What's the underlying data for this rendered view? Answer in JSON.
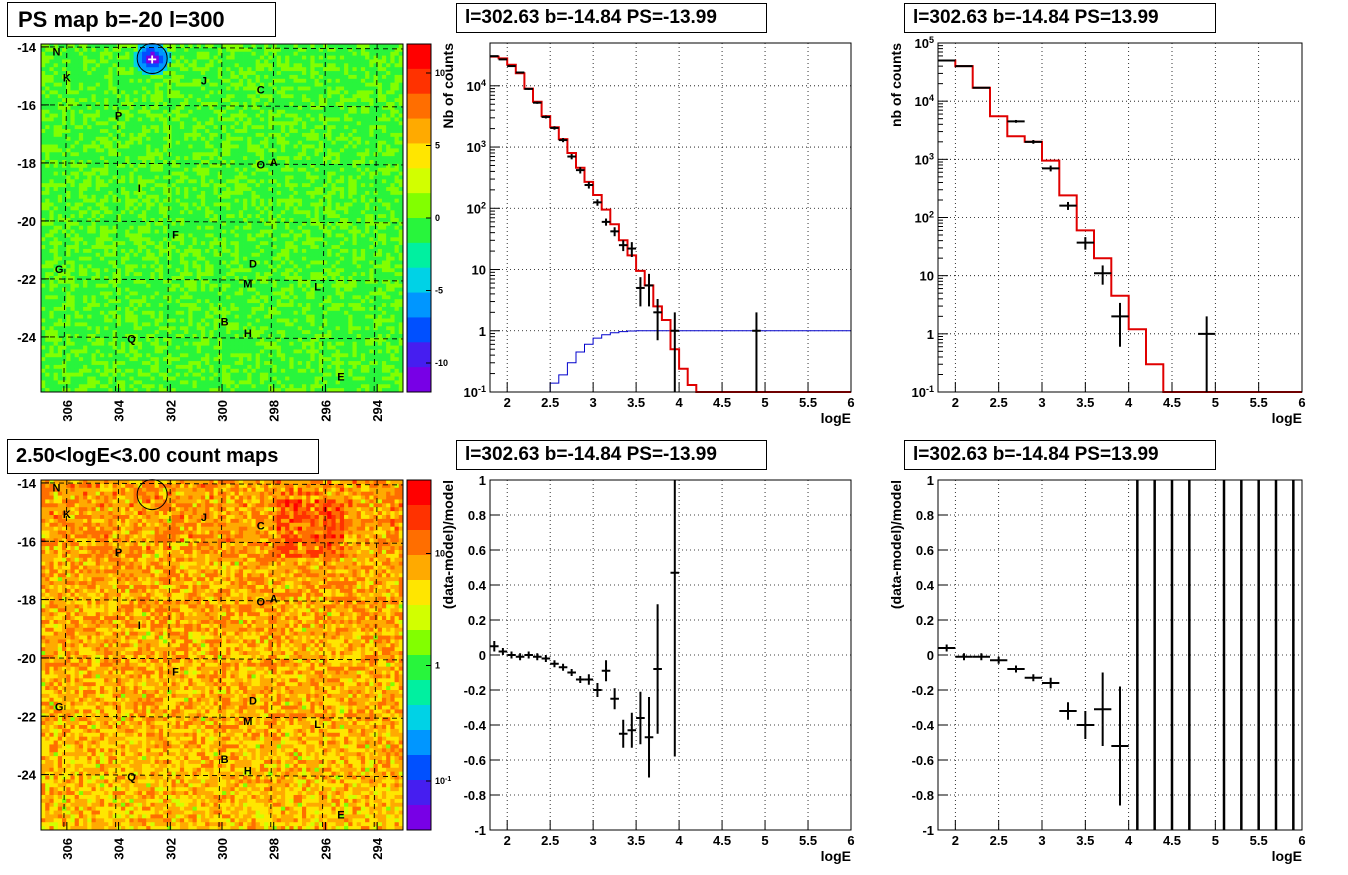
{
  "chart_data": [
    {
      "id": "ps_map",
      "type": "heatmap",
      "title": "PS map b=-20 l=300",
      "xlim": [
        307,
        293
      ],
      "ylim": [
        -25.9,
        -13.9
      ],
      "x_ticks": [
        306,
        304,
        302,
        300,
        298,
        296,
        294
      ],
      "y_ticks": [
        -14,
        -16,
        -18,
        -20,
        -22,
        -24
      ],
      "colorbar_ticks": [
        10,
        5,
        0,
        -5,
        -10
      ],
      "colorbar_range": [
        -12,
        12
      ],
      "background_level": -1,
      "hot_spot": {
        "l": 302.7,
        "b": -14.4,
        "label": "+"
      },
      "labels": [
        {
          "text": "N",
          "l": 306.4,
          "b": -14.3
        },
        {
          "text": "K",
          "l": 306.0,
          "b": -15.2
        },
        {
          "text": "J",
          "l": 300.7,
          "b": -15.3
        },
        {
          "text": "C",
          "l": 298.5,
          "b": -15.6
        },
        {
          "text": "P",
          "l": 304.0,
          "b": -16.5
        },
        {
          "text": "O",
          "l": 298.5,
          "b": -18.2
        },
        {
          "text": "A",
          "l": 298.0,
          "b": -18.1
        },
        {
          "text": "I",
          "l": 303.2,
          "b": -19.0
        },
        {
          "text": "F",
          "l": 301.8,
          "b": -20.6
        },
        {
          "text": "D",
          "l": 298.8,
          "b": -21.6
        },
        {
          "text": "G",
          "l": 306.3,
          "b": -21.8
        },
        {
          "text": "M",
          "l": 299.0,
          "b": -22.3
        },
        {
          "text": "L",
          "l": 296.3,
          "b": -22.4
        },
        {
          "text": "B",
          "l": 299.9,
          "b": -23.6
        },
        {
          "text": "H",
          "l": 299.0,
          "b": -24.0
        },
        {
          "text": "Q",
          "l": 303.5,
          "b": -24.2
        },
        {
          "text": "E",
          "l": 295.4,
          "b": -25.5
        }
      ]
    },
    {
      "id": "count_map",
      "type": "heatmap",
      "title": "2.50<logE<3.00 count maps",
      "xlim": [
        307,
        293
      ],
      "ylim": [
        -25.9,
        -13.9
      ],
      "x_ticks": [
        306,
        304,
        302,
        300,
        298,
        296,
        294
      ],
      "y_ticks": [
        -14,
        -16,
        -18,
        -20,
        -22,
        -24
      ],
      "colorbar_ticks": [
        "10",
        "1",
        "10^-1"
      ],
      "source_circle": {
        "l": 302.7,
        "b": -14.4
      },
      "labels": [
        {
          "text": "N",
          "l": 306.4,
          "b": -14.3
        },
        {
          "text": "K",
          "l": 306.0,
          "b": -15.2
        },
        {
          "text": "J",
          "l": 300.7,
          "b": -15.3
        },
        {
          "text": "C",
          "l": 298.5,
          "b": -15.6
        },
        {
          "text": "P",
          "l": 304.0,
          "b": -16.5
        },
        {
          "text": "O",
          "l": 298.5,
          "b": -18.2
        },
        {
          "text": "A",
          "l": 298.0,
          "b": -18.1
        },
        {
          "text": "I",
          "l": 303.2,
          "b": -19.0
        },
        {
          "text": "F",
          "l": 301.8,
          "b": -20.6
        },
        {
          "text": "D",
          "l": 298.8,
          "b": -21.6
        },
        {
          "text": "G",
          "l": 306.3,
          "b": -21.8
        },
        {
          "text": "M",
          "l": 299.0,
          "b": -22.3
        },
        {
          "text": "L",
          "l": 296.3,
          "b": -22.4
        },
        {
          "text": "B",
          "l": 299.9,
          "b": -23.6
        },
        {
          "text": "H",
          "l": 299.0,
          "b": -24.0
        },
        {
          "text": "Q",
          "l": 303.5,
          "b": -24.2
        },
        {
          "text": "E",
          "l": 295.4,
          "b": -25.5
        }
      ]
    },
    {
      "id": "spec_neg",
      "type": "line",
      "title": "l=302.63 b=-14.84 PS=-13.99",
      "xlabel": "logE",
      "ylabel": "Nb of counts",
      "log_y": true,
      "xlim": [
        1.8,
        6.0
      ],
      "ylim": [
        0.1,
        50000
      ],
      "x_ticks": [
        2,
        2.5,
        3,
        3.5,
        4,
        4.5,
        5,
        5.5,
        6
      ],
      "y_ticks": [
        {
          "v": 0.1,
          "t": "10^-1"
        },
        {
          "v": 1,
          "t": "1"
        },
        {
          "v": 10,
          "t": "10"
        },
        {
          "v": 100,
          "t": "10^2"
        },
        {
          "v": 1000,
          "t": "10^3"
        },
        {
          "v": 10000,
          "t": "10^4"
        }
      ],
      "model": {
        "edges": [
          1.8,
          1.9,
          2.0,
          2.1,
          2.2,
          2.3,
          2.4,
          2.5,
          2.6,
          2.7,
          2.8,
          2.9,
          3.0,
          3.1,
          3.2,
          3.3,
          3.4,
          3.5,
          3.6,
          3.7,
          3.8,
          3.9,
          4.0,
          4.1,
          4.2,
          4.3,
          4.4,
          4.5,
          4.6,
          4.7,
          4.8,
          4.9,
          5.0,
          5.1,
          5.2,
          5.3,
          5.4,
          5.5,
          5.6,
          5.7,
          5.8,
          5.9,
          6.0
        ],
        "values": [
          30000,
          28000,
          22000,
          16000,
          9000,
          5500,
          3200,
          2100,
          1350,
          800,
          460,
          270,
          165,
          95,
          55,
          30,
          17,
          9.5,
          5.5,
          2.5,
          1.5,
          0.5,
          0.24,
          0.13,
          0.1,
          0.1,
          0.1,
          0.1,
          0.1,
          0.1,
          0.1,
          0.1,
          0.1,
          0.1,
          0.1,
          0.1,
          0.1,
          0.1,
          0.1,
          0.1,
          0.1,
          0.1
        ]
      },
      "ps_model": {
        "edges": [
          2.4,
          2.5,
          2.6,
          2.7,
          2.8,
          2.9,
          3.0,
          3.1,
          3.2,
          3.3,
          3.4,
          3.5,
          3.6,
          3.7,
          3.8,
          3.9,
          4.0,
          4.1,
          4.2,
          6.0
        ],
        "values": [
          0.1,
          0.14,
          0.19,
          0.3,
          0.45,
          0.6,
          0.76,
          0.86,
          0.93,
          0.97,
          0.99,
          1.0,
          1.0,
          1.0,
          1.0,
          1.0,
          1.0,
          1.0,
          1.0
        ]
      },
      "data": [
        {
          "x": 1.85,
          "y": 30500,
          "ey": 600
        },
        {
          "x": 1.95,
          "y": 27000,
          "ey": 500
        },
        {
          "x": 2.05,
          "y": 21000,
          "ey": 450
        },
        {
          "x": 2.15,
          "y": 16500,
          "ey": 400
        },
        {
          "x": 2.25,
          "y": 8900,
          "ey": 300
        },
        {
          "x": 2.35,
          "y": 5300,
          "ey": 220
        },
        {
          "x": 2.45,
          "y": 3100,
          "ey": 170
        },
        {
          "x": 2.55,
          "y": 2050,
          "ey": 130
        },
        {
          "x": 2.65,
          "y": 1300,
          "ey": 100
        },
        {
          "x": 2.75,
          "y": 700,
          "ey": 70
        },
        {
          "x": 2.85,
          "y": 420,
          "ey": 50
        },
        {
          "x": 2.95,
          "y": 240,
          "ey": 30
        },
        {
          "x": 3.05,
          "y": 125,
          "ey": 15
        },
        {
          "x": 3.15,
          "y": 60,
          "ey": 8
        },
        {
          "x": 3.25,
          "y": 42,
          "ey": 7
        },
        {
          "x": 3.35,
          "y": 25,
          "ey": 5
        },
        {
          "x": 3.45,
          "y": 22,
          "ey": 6
        },
        {
          "x": 3.55,
          "y": 5,
          "ey": 2.5
        },
        {
          "x": 3.65,
          "y": 5.5,
          "ey": 3
        },
        {
          "x": 3.75,
          "y": 2,
          "ey": 1.3
        },
        {
          "x": 3.95,
          "y": 1,
          "ey": 1
        },
        {
          "x": 4.9,
          "y": 1,
          "ey": 1
        }
      ]
    },
    {
      "id": "spec_pos",
      "type": "line",
      "title": "l=302.63 b=-14.84 PS=13.99",
      "xlabel": "logE",
      "ylabel": "nb of counts",
      "log_y": true,
      "xlim": [
        1.8,
        6.0
      ],
      "ylim": [
        0.1,
        100000
      ],
      "x_ticks": [
        2,
        2.5,
        3,
        3.5,
        4,
        4.5,
        5,
        5.5,
        6
      ],
      "y_ticks": [
        {
          "v": 0.1,
          "t": "10^-1"
        },
        {
          "v": 1,
          "t": "1"
        },
        {
          "v": 10,
          "t": "10"
        },
        {
          "v": 100,
          "t": "10^2"
        },
        {
          "v": 1000,
          "t": "10^3"
        },
        {
          "v": 10000,
          "t": "10^4"
        },
        {
          "v": 100000,
          "t": "10^5"
        }
      ],
      "model": {
        "edges": [
          1.8,
          2.0,
          2.2,
          2.4,
          2.6,
          2.8,
          3.0,
          3.2,
          3.4,
          3.6,
          3.8,
          4.0,
          4.2,
          4.4,
          4.6,
          4.8,
          5.0,
          5.2,
          5.4,
          5.6,
          5.8,
          6.0
        ],
        "values": [
          50000,
          40000,
          17000,
          5500,
          2500,
          2000,
          950,
          240,
          60,
          20,
          4.5,
          1.2,
          0.3,
          0.1,
          0.1,
          0.1,
          0.1,
          0.1,
          0.1,
          0.1,
          0.1
        ]
      },
      "data": [
        {
          "x": 1.9,
          "y": 50000,
          "ey": 800
        },
        {
          "x": 2.1,
          "y": 40000,
          "ey": 700
        },
        {
          "x": 2.3,
          "y": 17000,
          "ey": 450
        },
        {
          "x": 2.7,
          "y": 4500,
          "ey": 250
        },
        {
          "x": 2.9,
          "y": 2000,
          "ey": 150
        },
        {
          "x": 3.1,
          "y": 700,
          "ey": 80
        },
        {
          "x": 3.3,
          "y": 160,
          "ey": 25
        },
        {
          "x": 3.5,
          "y": 37,
          "ey": 9
        },
        {
          "x": 3.7,
          "y": 11,
          "ey": 4
        },
        {
          "x": 3.9,
          "y": 2,
          "ey": 1.4
        },
        {
          "x": 4.9,
          "y": 1,
          "ey": 1
        }
      ]
    },
    {
      "id": "resid_neg",
      "type": "scatter",
      "title": "l=302.63 b=-14.84 PS=-13.99",
      "xlabel": "logE",
      "ylabel": "(data-model)/model",
      "xlim": [
        1.8,
        6.0
      ],
      "ylim": [
        -1,
        1
      ],
      "x_ticks": [
        2,
        2.5,
        3,
        3.5,
        4,
        4.5,
        5,
        5.5,
        6
      ],
      "y_ticks": [
        -1,
        -0.8,
        -0.6,
        -0.4,
        -0.2,
        0,
        0.2,
        0.4,
        0.6,
        0.8,
        1
      ],
      "data": [
        {
          "x": 1.85,
          "y": 0.05,
          "ey": 0.03
        },
        {
          "x": 1.95,
          "y": 0.02,
          "ey": 0.02
        },
        {
          "x": 2.05,
          "y": 0.0,
          "ey": 0.02
        },
        {
          "x": 2.15,
          "y": -0.01,
          "ey": 0.02
        },
        {
          "x": 2.25,
          "y": 0.0,
          "ey": 0.02
        },
        {
          "x": 2.35,
          "y": -0.01,
          "ey": 0.02
        },
        {
          "x": 2.45,
          "y": -0.02,
          "ey": 0.02
        },
        {
          "x": 2.55,
          "y": -0.05,
          "ey": 0.02
        },
        {
          "x": 2.65,
          "y": -0.07,
          "ey": 0.02
        },
        {
          "x": 2.75,
          "y": -0.1,
          "ey": 0.02
        },
        {
          "x": 2.85,
          "y": -0.14,
          "ey": 0.02
        },
        {
          "x": 2.95,
          "y": -0.14,
          "ey": 0.03
        },
        {
          "x": 3.05,
          "y": -0.2,
          "ey": 0.04
        },
        {
          "x": 3.15,
          "y": -0.09,
          "ey": 0.06
        },
        {
          "x": 3.25,
          "y": -0.25,
          "ey": 0.06
        },
        {
          "x": 3.35,
          "y": -0.45,
          "ey": 0.08
        },
        {
          "x": 3.45,
          "y": -0.43,
          "ey": 0.1
        },
        {
          "x": 3.55,
          "y": -0.36,
          "ey": 0.15
        },
        {
          "x": 3.65,
          "y": -0.47,
          "ey": 0.23
        },
        {
          "x": 3.75,
          "y": -0.08,
          "ey": 0.37
        },
        {
          "x": 3.95,
          "y": 0.47,
          "ey": 1.05
        }
      ]
    },
    {
      "id": "resid_pos",
      "type": "scatter",
      "title": "l=302.63 b=-14.84 PS=13.99",
      "xlabel": "logE",
      "ylabel": "(data-model)/model",
      "xlim": [
        1.8,
        6.0
      ],
      "ylim": [
        -1,
        1
      ],
      "x_ticks": [
        2,
        2.5,
        3,
        3.5,
        4,
        4.5,
        5,
        5.5,
        6
      ],
      "y_ticks": [
        -1,
        -0.8,
        -0.6,
        -0.4,
        -0.2,
        0,
        0.2,
        0.4,
        0.6,
        0.8,
        1
      ],
      "data": [
        {
          "x": 1.9,
          "y": 0.04,
          "ey": 0.02
        },
        {
          "x": 2.1,
          "y": -0.01,
          "ey": 0.02
        },
        {
          "x": 2.3,
          "y": -0.01,
          "ey": 0.02
        },
        {
          "x": 2.5,
          "y": -0.03,
          "ey": 0.02
        },
        {
          "x": 2.7,
          "y": -0.08,
          "ey": 0.02
        },
        {
          "x": 2.9,
          "y": -0.13,
          "ey": 0.02
        },
        {
          "x": 3.1,
          "y": -0.16,
          "ey": 0.03
        },
        {
          "x": 3.3,
          "y": -0.32,
          "ey": 0.05
        },
        {
          "x": 3.5,
          "y": -0.4,
          "ey": 0.08
        },
        {
          "x": 3.7,
          "y": -0.31,
          "ey": 0.21
        },
        {
          "x": 3.9,
          "y": -0.52,
          "ey": 0.34
        }
      ],
      "full_bars_x": [
        4.1,
        4.3,
        4.5,
        4.7,
        5.1,
        5.3,
        5.5,
        5.7,
        5.9
      ]
    }
  ]
}
